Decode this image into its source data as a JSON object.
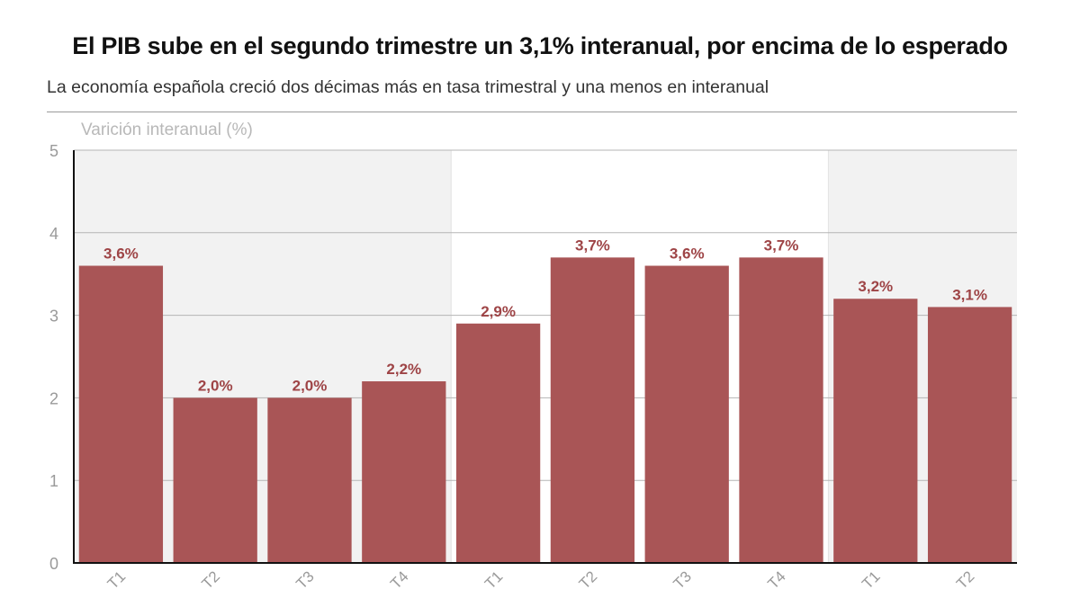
{
  "header": {
    "title": "El PIB sube en el segundo trimestre un 3,1% interanual, por encima de lo esperado",
    "subtitle": "La economía española creció dos décimas más en tasa trimestral y una menos en interanual"
  },
  "colors": {
    "bar": "#a95556",
    "label": "#9e4446",
    "axis_text": "#9a9a9a",
    "gridline": "#b5b5b5",
    "year_band": "#f2f2f2"
  },
  "chart_data": {
    "type": "bar",
    "title": "El PIB sube en el segundo trimestre un 3,1% interanual, por encima de lo esperado",
    "subtitle": "La economía española creció dos décimas más en tasa trimestral y una menos en interanual",
    "ylabel": "Varición interanual (%)",
    "xlabel": "",
    "categories": [
      "T1",
      "T2",
      "T3",
      "T4",
      "T1",
      "T2",
      "T3",
      "T4",
      "T1",
      "T2"
    ],
    "values": [
      3.6,
      2.0,
      2.0,
      2.2,
      2.9,
      3.7,
      3.6,
      3.7,
      3.2,
      3.1
    ],
    "data_labels": [
      "3,6%",
      "2,0%",
      "2,0%",
      "2,2%",
      "2,9%",
      "3,7%",
      "3,6%",
      "3,7%",
      "3,2%",
      "3,1%"
    ],
    "ylim": [
      0,
      5
    ],
    "yticks": [
      "0",
      "1",
      "2",
      "3",
      "4",
      "5"
    ],
    "grid": true,
    "year_groups": [
      {
        "start": 0,
        "end": 3,
        "shaded": true
      },
      {
        "start": 4,
        "end": 7,
        "shaded": false
      },
      {
        "start": 8,
        "end": 9,
        "shaded": true
      }
    ]
  }
}
